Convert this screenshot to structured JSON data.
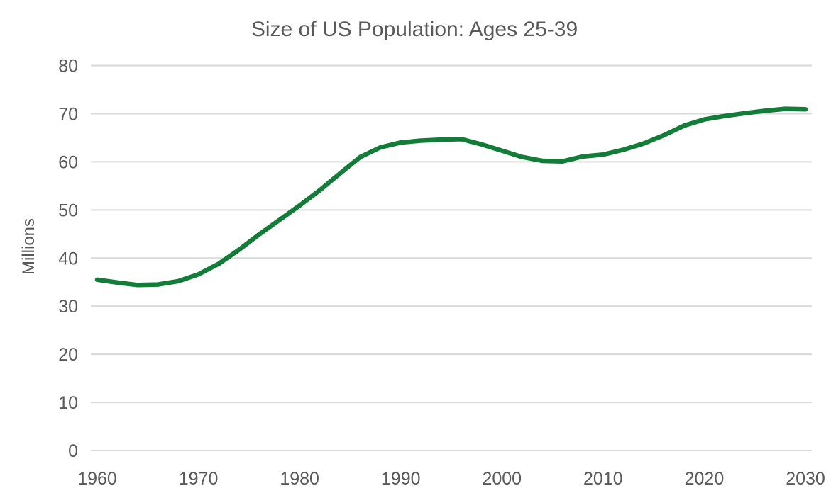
{
  "chart_data": {
    "type": "line",
    "title": "Size of US Population: Ages 25-39",
    "ylabel": "Millions",
    "xlabel": "",
    "x": [
      1960,
      1962,
      1964,
      1966,
      1968,
      1970,
      1972,
      1974,
      1976,
      1978,
      1980,
      1982,
      1984,
      1986,
      1988,
      1990,
      1992,
      1994,
      1996,
      1998,
      2000,
      2002,
      2004,
      2006,
      2008,
      2010,
      2012,
      2014,
      2016,
      2018,
      2020,
      2022,
      2024,
      2026,
      2028,
      2030
    ],
    "series": [
      {
        "name": "US population ages 25-39",
        "color": "#127c38",
        "values": [
          35.5,
          34.9,
          34.4,
          34.5,
          35.2,
          36.6,
          38.8,
          41.7,
          44.9,
          47.9,
          50.9,
          54.1,
          57.6,
          61.0,
          63.0,
          64.0,
          64.4,
          64.6,
          64.7,
          63.6,
          62.3,
          61.0,
          60.2,
          60.1,
          61.1,
          61.5,
          62.5,
          63.8,
          65.5,
          67.5,
          68.8,
          69.5,
          70.1,
          70.6,
          71.0,
          70.9
        ]
      }
    ],
    "xlim": [
      1960,
      2030
    ],
    "ylim": [
      0,
      80
    ],
    "x_ticks": [
      "1960",
      "1970",
      "1980",
      "1990",
      "2000",
      "2010",
      "2020",
      "2030"
    ],
    "y_ticks": [
      "0",
      "10",
      "20",
      "30",
      "40",
      "50",
      "60",
      "70",
      "80"
    ],
    "grid": "horizontal-only",
    "legend": "none",
    "colors": {
      "line": "#127c38",
      "text": "#595959",
      "gridline": "#d9d9d9",
      "background": "#ffffff"
    }
  }
}
